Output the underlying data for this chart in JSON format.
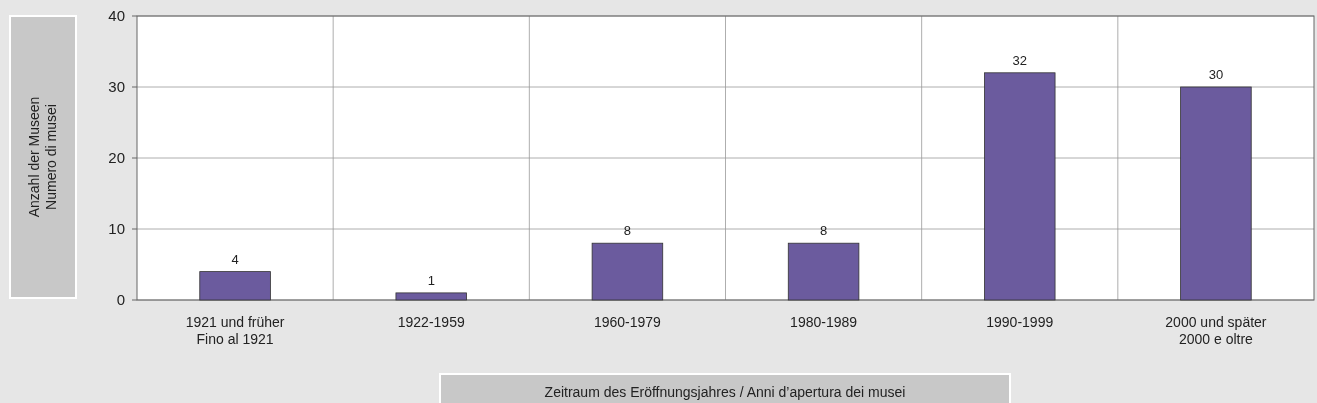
{
  "chart_data": {
    "type": "bar",
    "ylabel": "Anzahl der Museen\nNumero di musei",
    "xlabel": "Zeitraum des Eröffnungsjahres / Anni d’apertura dei musei",
    "categories": [
      "1921 und früher\nFino al 1921",
      "1922-1959",
      "1960-1979",
      "1980-1989",
      "1990-1999",
      "2000 und später\n2000 e oltre"
    ],
    "values": [
      4,
      1,
      8,
      8,
      32,
      30
    ],
    "color": "#6b5b9e",
    "ylim": [
      0,
      40
    ],
    "yticks": [
      0,
      10,
      20,
      30,
      40
    ],
    "grid": true,
    "data_labels": true
  }
}
